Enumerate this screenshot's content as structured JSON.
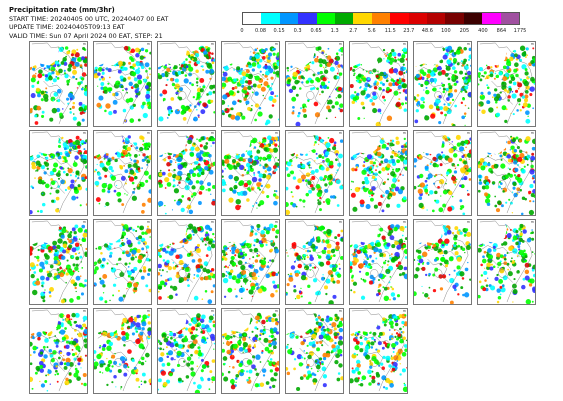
{
  "header": {
    "title": "Precipitation rate (mm/3hr)",
    "start_time": "START TIME: 20240405 00 UTC, 20240407 00 EAT",
    "update_time": "UPDATE TIME: 20240405T09:13 EAT",
    "valid_time": "VALID TIME: Sun 07 April 2024 00 EAT, STEP: 21"
  },
  "colorbar": {
    "colors": [
      "#ffffff",
      "#00ffff",
      "#0096ff",
      "#3232ff",
      "#00ff00",
      "#00aa00",
      "#ffd700",
      "#ff8000",
      "#ff0000",
      "#dc0000",
      "#b40000",
      "#780000",
      "#3c0000",
      "#ff00ff",
      "#a050a0"
    ],
    "ticks": [
      "0",
      "0.08",
      "0.15",
      "0.3",
      "0.65",
      "1.3",
      "2.7",
      "5.6",
      "11.5",
      "23.7",
      "48.6",
      "100",
      "205",
      "400",
      "864",
      "1775"
    ]
  },
  "panels": {
    "count": 30,
    "member_tag": "m"
  }
}
